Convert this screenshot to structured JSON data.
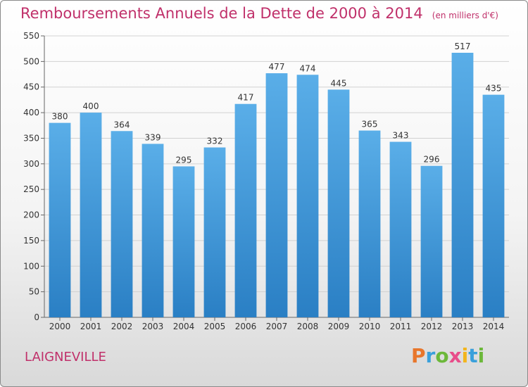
{
  "header": {
    "title": "Remboursements Annuels de la Dette de 2000 à 2014",
    "subtitle": "(en milliers d'€)"
  },
  "footer": {
    "commune": "LAIGNEVILLE",
    "logo_text": "Proxiti"
  },
  "colors": {
    "title": "#c0306a",
    "bar_top": "#5aaee8",
    "bar_bottom": "#2a7fc4",
    "logo": [
      "#e8762b",
      "#3aa0db",
      "#6cb83a",
      "#e84d8a",
      "#f2b51d",
      "#3aa0db",
      "#6cb83a"
    ]
  },
  "chart_data": {
    "type": "bar",
    "categories": [
      "2000",
      "2001",
      "2002",
      "2003",
      "2004",
      "2005",
      "2006",
      "2007",
      "2008",
      "2009",
      "2010",
      "2011",
      "2012",
      "2013",
      "2014"
    ],
    "values": [
      380,
      400,
      364,
      339,
      295,
      332,
      417,
      477,
      474,
      445,
      365,
      343,
      296,
      517,
      435
    ],
    "title": "Remboursements Annuels de la Dette de 2000 à 2014",
    "xlabel": "",
    "ylabel": "",
    "ylim": [
      0,
      550
    ],
    "yticks": [
      0,
      50,
      100,
      150,
      200,
      250,
      300,
      350,
      400,
      450,
      500,
      550
    ],
    "grid": true
  }
}
